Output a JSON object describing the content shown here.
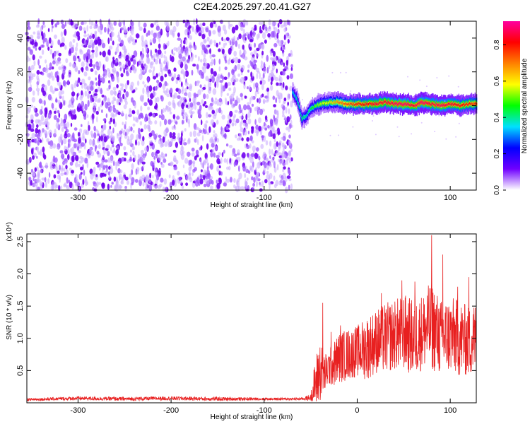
{
  "title": "C2E4.2025.297.20.41.G27",
  "chart_data": [
    {
      "type": "heatmap",
      "xlabel": "Height of straight line (km)",
      "ylabel": "Frequency (Hz)",
      "xlim": [
        -355,
        128
      ],
      "ylim": [
        -50,
        50
      ],
      "x_ticks": [
        -300,
        -200,
        -100,
        0,
        100
      ],
      "y_ticks": [
        -40,
        -20,
        0,
        20,
        40
      ],
      "grid": false,
      "noise_region": {
        "x_range": [
          -355,
          -70
        ],
        "freq_range": [
          -50,
          50
        ],
        "level": 0.12
      },
      "signal_trace": {
        "x": [
          -70,
          -65,
          -62,
          -60,
          -55,
          -50,
          -45,
          -40,
          -30,
          -20,
          -10,
          0,
          10,
          20,
          30,
          40,
          50,
          60,
          70,
          80,
          90,
          100,
          110,
          120,
          128
        ],
        "freq": [
          8,
          4,
          -2,
          -8,
          -6,
          -2,
          0,
          1,
          2,
          2,
          1,
          1,
          1,
          1,
          2,
          1,
          1,
          0,
          2,
          1,
          0,
          1,
          0,
          1,
          1
        ],
        "amplitude": [
          0.35,
          0.4,
          0.4,
          0.45,
          0.4,
          0.45,
          0.5,
          0.55,
          0.6,
          0.7,
          0.75,
          0.8,
          0.82,
          0.85,
          0.85,
          0.88,
          0.9,
          0.85,
          0.9,
          0.85,
          0.88,
          0.85,
          0.82,
          0.8,
          0.78
        ]
      },
      "colorbar": {
        "label": "Normalized spectral amplitude",
        "range": [
          0,
          0.93
        ],
        "ticks": [
          0.0,
          0.2,
          0.4,
          0.6,
          0.8
        ],
        "tick_labels": [
          "0.0",
          "0.2",
          "0.4",
          "0.6",
          "0.8"
        ],
        "colors": [
          "#ffffff",
          "#7000ff",
          "#0000ff",
          "#00e0ff",
          "#00ff00",
          "#ffff00",
          "#ff8000",
          "#ff0000",
          "#ff00a0"
        ]
      }
    },
    {
      "type": "line",
      "xlabel": "Height of straight line (km)",
      "ylabel": "SNR (10 * v/v)",
      "y_multiplier": "(x10⁴)",
      "xlim": [
        -355,
        128
      ],
      "ylim": [
        0,
        2.62
      ],
      "x_ticks": [
        -300,
        -200,
        -100,
        0,
        100
      ],
      "y_ticks": [
        0.5,
        1.0,
        1.5,
        2.0,
        2.5
      ],
      "y_tick_labels": [
        "0.5",
        "1.0",
        "1.5",
        "2.0",
        "2.5"
      ],
      "grid": false,
      "series": [
        {
          "color": "#e82020",
          "x": [
            -355,
            -300,
            -250,
            -200,
            -150,
            -100,
            -60,
            -50,
            -45,
            -40,
            -35,
            -30,
            -25,
            -20,
            -10,
            0,
            10,
            20,
            30,
            40,
            50,
            60,
            70,
            80,
            90,
            100,
            110,
            120,
            128
          ],
          "y": [
            0.05,
            0.07,
            0.06,
            0.07,
            0.06,
            0.06,
            0.06,
            0.08,
            0.3,
            0.5,
            0.45,
            0.55,
            0.6,
            0.7,
            0.75,
            0.8,
            0.85,
            0.95,
            1.0,
            1.05,
            1.1,
            1.0,
            1.1,
            1.2,
            1.0,
            1.05,
            1.0,
            0.95,
            1.0
          ],
          "spread": [
            0.02,
            0.03,
            0.03,
            0.03,
            0.03,
            0.02,
            0.02,
            0.05,
            0.4,
            0.5,
            0.3,
            0.3,
            0.35,
            0.4,
            0.4,
            0.4,
            0.5,
            0.5,
            0.55,
            0.55,
            0.6,
            0.6,
            0.6,
            0.7,
            0.6,
            0.6,
            0.6,
            0.55,
            0.6
          ],
          "peaks": [
            [
              -37,
              1.55
            ],
            [
              -28,
              1.1
            ],
            [
              -18,
              1.2
            ],
            [
              26,
              1.7
            ],
            [
              48,
              1.9
            ],
            [
              62,
              1.88
            ],
            [
              80,
              2.6
            ],
            [
              92,
              2.3
            ],
            [
              108,
              1.8
            ],
            [
              120,
              1.95
            ],
            [
              128,
              1.85
            ]
          ]
        }
      ]
    }
  ]
}
